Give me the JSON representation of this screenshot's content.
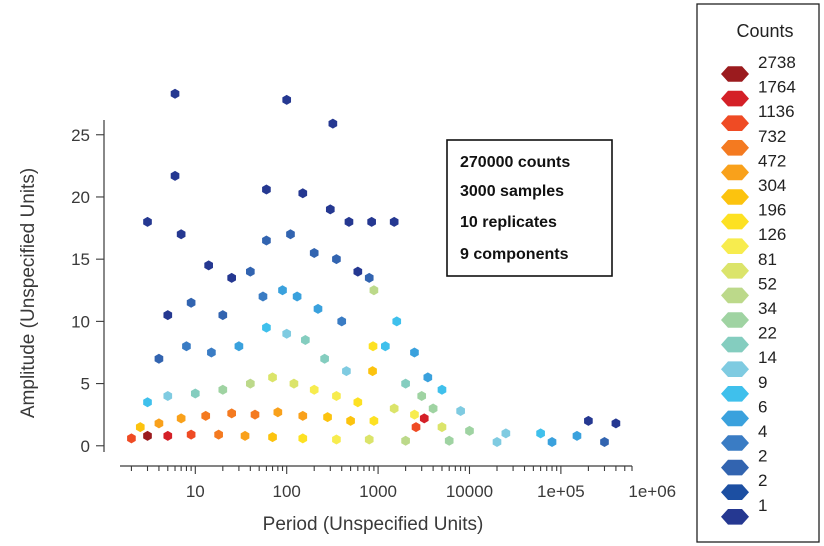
{
  "chart_data": {
    "type": "heatmap",
    "subtype": "hexbin",
    "xlabel": "Period (Unspecified Units)",
    "ylabel": "Amplitude (Unspecified Units)",
    "x_scale": "log10",
    "xlim": [
      1.5,
      600000
    ],
    "ylim": [
      -0.5,
      29
    ],
    "x_ticks": [
      {
        "value": 10,
        "label": "10"
      },
      {
        "value": 100,
        "label": "100"
      },
      {
        "value": 1000,
        "label": "1000"
      },
      {
        "value": 10000,
        "label": "10000"
      },
      {
        "value": 100000,
        "label": "1e+05"
      },
      {
        "value": 1000000,
        "label": "1e+06"
      }
    ],
    "y_ticks": [
      {
        "value": 0,
        "label": "0"
      },
      {
        "value": 5,
        "label": "5"
      },
      {
        "value": 10,
        "label": "10"
      },
      {
        "value": 15,
        "label": "15"
      },
      {
        "value": 20,
        "label": "20"
      },
      {
        "value": 25,
        "label": "25"
      }
    ],
    "grid": false,
    "annotation_lines": [
      "270000 counts",
      "3000 samples",
      "10 replicates",
      "9 components"
    ],
    "legend": {
      "title": "Counts",
      "placement": "right",
      "entries": [
        {
          "label": "2738",
          "color": "#9b1b1e"
        },
        {
          "label": "1764",
          "color": "#d42027"
        },
        {
          "label": "1136",
          "color": "#ef4b24"
        },
        {
          "label": "732",
          "color": "#f47a20"
        },
        {
          "label": "472",
          "color": "#f9a11b"
        },
        {
          "label": "304",
          "color": "#fcc30e"
        },
        {
          "label": "196",
          "color": "#fde122"
        },
        {
          "label": "126",
          "color": "#f7ec4e"
        },
        {
          "label": "81",
          "color": "#dbe46a"
        },
        {
          "label": "52",
          "color": "#bcd98a"
        },
        {
          "label": "34",
          "color": "#9fd3a2"
        },
        {
          "label": "22",
          "color": "#84cdbf"
        },
        {
          "label": "14",
          "color": "#7fcbe1"
        },
        {
          "label": "9",
          "color": "#3fc0ec"
        },
        {
          "label": "6",
          "color": "#3aa1dd"
        },
        {
          "label": "4",
          "color": "#3a7cc4"
        },
        {
          "label": "2",
          "color": "#3264b0"
        },
        {
          "label": "2",
          "color": "#1c4fa2"
        },
        {
          "label": "1",
          "color": "#253891"
        }
      ]
    },
    "points": [
      {
        "x": 6,
        "y": 28.3,
        "count": 1
      },
      {
        "x": 100,
        "y": 27.8,
        "count": 1
      },
      {
        "x": 320,
        "y": 25.9,
        "count": 1
      },
      {
        "x": 6,
        "y": 21.7,
        "count": 1
      },
      {
        "x": 3,
        "y": 18,
        "count": 1
      },
      {
        "x": 7,
        "y": 17,
        "count": 1
      },
      {
        "x": 60,
        "y": 20.6,
        "count": 1
      },
      {
        "x": 150,
        "y": 20.3,
        "count": 1
      },
      {
        "x": 300,
        "y": 19,
        "count": 1
      },
      {
        "x": 480,
        "y": 18,
        "count": 1
      },
      {
        "x": 850,
        "y": 18,
        "count": 1
      },
      {
        "x": 1500,
        "y": 18,
        "count": 1
      },
      {
        "x": 14,
        "y": 14.5,
        "count": 1
      },
      {
        "x": 25,
        "y": 13.5,
        "count": 1
      },
      {
        "x": 40,
        "y": 14,
        "count": 2
      },
      {
        "x": 60,
        "y": 16.5,
        "count": 2
      },
      {
        "x": 110,
        "y": 17,
        "count": 2
      },
      {
        "x": 200,
        "y": 15.5,
        "count": 2
      },
      {
        "x": 350,
        "y": 15,
        "count": 2
      },
      {
        "x": 600,
        "y": 14,
        "count": 1
      },
      {
        "x": 800,
        "y": 13.5,
        "count": 2
      },
      {
        "x": 5,
        "y": 10.5,
        "count": 1
      },
      {
        "x": 9,
        "y": 11.5,
        "count": 2
      },
      {
        "x": 20,
        "y": 10.5,
        "count": 2
      },
      {
        "x": 55,
        "y": 12,
        "count": 4
      },
      {
        "x": 90,
        "y": 12.5,
        "count": 6
      },
      {
        "x": 130,
        "y": 12,
        "count": 6
      },
      {
        "x": 220,
        "y": 11,
        "count": 6
      },
      {
        "x": 400,
        "y": 10,
        "count": 4
      },
      {
        "x": 900,
        "y": 12.5,
        "count": 52
      },
      {
        "x": 1600,
        "y": 10,
        "count": 9
      },
      {
        "x": 2500,
        "y": 7.5,
        "count": 6
      },
      {
        "x": 3500,
        "y": 5.5,
        "count": 6
      },
      {
        "x": 4,
        "y": 7,
        "count": 2
      },
      {
        "x": 8,
        "y": 8,
        "count": 4
      },
      {
        "x": 15,
        "y": 7.5,
        "count": 4
      },
      {
        "x": 30,
        "y": 8,
        "count": 6
      },
      {
        "x": 60,
        "y": 9.5,
        "count": 9
      },
      {
        "x": 100,
        "y": 9,
        "count": 14
      },
      {
        "x": 160,
        "y": 8.5,
        "count": 22
      },
      {
        "x": 260,
        "y": 7,
        "count": 22
      },
      {
        "x": 450,
        "y": 6,
        "count": 14
      },
      {
        "x": 880,
        "y": 8,
        "count": 196
      },
      {
        "x": 870,
        "y": 6,
        "count": 304
      },
      {
        "x": 1200,
        "y": 8,
        "count": 9
      },
      {
        "x": 2000,
        "y": 5,
        "count": 22
      },
      {
        "x": 3000,
        "y": 4,
        "count": 34
      },
      {
        "x": 5000,
        "y": 4.5,
        "count": 9
      },
      {
        "x": 3,
        "y": 3.5,
        "count": 9
      },
      {
        "x": 5,
        "y": 4,
        "count": 14
      },
      {
        "x": 10,
        "y": 4.2,
        "count": 22
      },
      {
        "x": 20,
        "y": 4.5,
        "count": 34
      },
      {
        "x": 40,
        "y": 5,
        "count": 52
      },
      {
        "x": 70,
        "y": 5.5,
        "count": 81
      },
      {
        "x": 120,
        "y": 5,
        "count": 81
      },
      {
        "x": 200,
        "y": 4.5,
        "count": 126
      },
      {
        "x": 350,
        "y": 4,
        "count": 126
      },
      {
        "x": 600,
        "y": 3.5,
        "count": 196
      },
      {
        "x": 1500,
        "y": 3,
        "count": 81
      },
      {
        "x": 2500,
        "y": 2.5,
        "count": 126
      },
      {
        "x": 4000,
        "y": 3,
        "count": 34
      },
      {
        "x": 8000,
        "y": 2.8,
        "count": 14
      },
      {
        "x": 2.5,
        "y": 1.5,
        "count": 304
      },
      {
        "x": 4,
        "y": 1.8,
        "count": 472
      },
      {
        "x": 7,
        "y": 2.2,
        "count": 472
      },
      {
        "x": 13,
        "y": 2.4,
        "count": 732
      },
      {
        "x": 25,
        "y": 2.6,
        "count": 732
      },
      {
        "x": 45,
        "y": 2.5,
        "count": 732
      },
      {
        "x": 80,
        "y": 2.7,
        "count": 472
      },
      {
        "x": 150,
        "y": 2.4,
        "count": 472
      },
      {
        "x": 280,
        "y": 2.3,
        "count": 304
      },
      {
        "x": 500,
        "y": 2,
        "count": 304
      },
      {
        "x": 900,
        "y": 2,
        "count": 196
      },
      {
        "x": 2600,
        "y": 1.5,
        "count": 1136
      },
      {
        "x": 3200,
        "y": 2.2,
        "count": 1764
      },
      {
        "x": 5000,
        "y": 1.5,
        "count": 81
      },
      {
        "x": 10000,
        "y": 1.2,
        "count": 34
      },
      {
        "x": 25000,
        "y": 1,
        "count": 14
      },
      {
        "x": 60000,
        "y": 1,
        "count": 9
      },
      {
        "x": 150000,
        "y": 0.8,
        "count": 6
      },
      {
        "x": 2,
        "y": 0.6,
        "count": 1136
      },
      {
        "x": 3,
        "y": 0.8,
        "count": 2738
      },
      {
        "x": 5,
        "y": 0.8,
        "count": 1764
      },
      {
        "x": 9,
        "y": 0.9,
        "count": 1136
      },
      {
        "x": 18,
        "y": 0.9,
        "count": 732
      },
      {
        "x": 35,
        "y": 0.8,
        "count": 472
      },
      {
        "x": 70,
        "y": 0.7,
        "count": 304
      },
      {
        "x": 150,
        "y": 0.6,
        "count": 196
      },
      {
        "x": 350,
        "y": 0.5,
        "count": 126
      },
      {
        "x": 800,
        "y": 0.5,
        "count": 81
      },
      {
        "x": 2000,
        "y": 0.4,
        "count": 52
      },
      {
        "x": 6000,
        "y": 0.4,
        "count": 34
      },
      {
        "x": 20000,
        "y": 0.3,
        "count": 14
      },
      {
        "x": 80000,
        "y": 0.3,
        "count": 6
      },
      {
        "x": 300000,
        "y": 0.3,
        "count": 2
      },
      {
        "x": 200000,
        "y": 2,
        "count": 1
      },
      {
        "x": 400000,
        "y": 1.8,
        "count": 1
      }
    ]
  }
}
